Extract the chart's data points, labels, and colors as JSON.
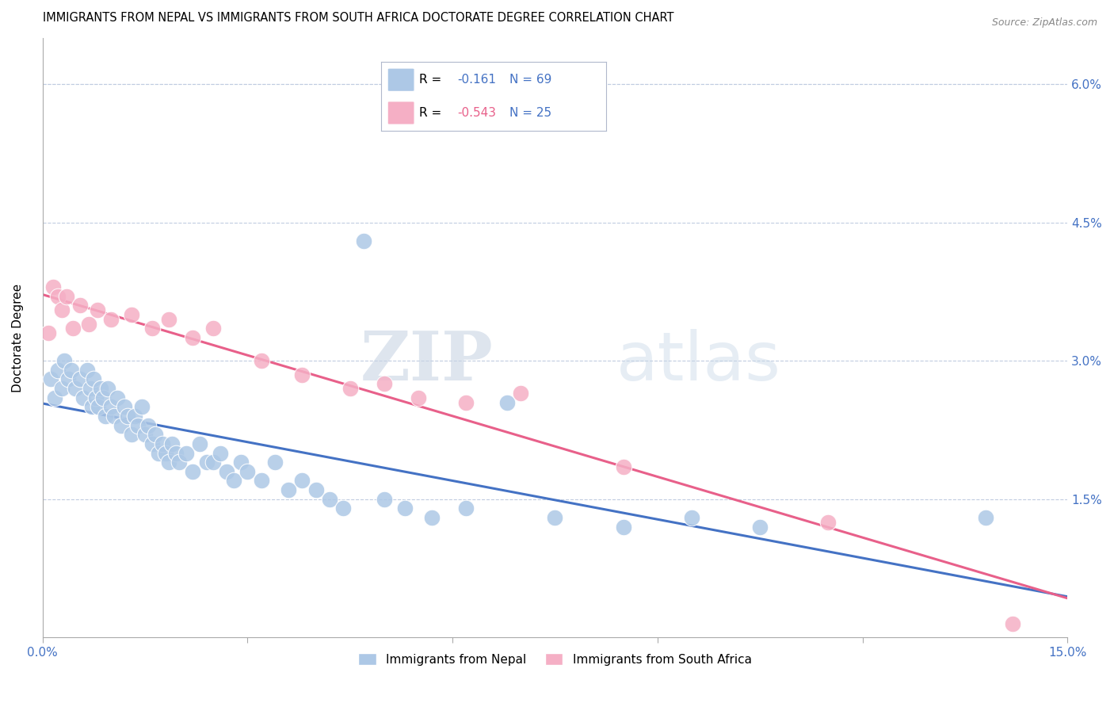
{
  "title": "IMMIGRANTS FROM NEPAL VS IMMIGRANTS FROM SOUTH AFRICA DOCTORATE DEGREE CORRELATION CHART",
  "source": "Source: ZipAtlas.com",
  "ylabel": "Doctorate Degree",
  "xmin": 0.0,
  "xmax": 15.0,
  "ymin": 0.0,
  "ymax": 6.5,
  "yplot_max": 6.0,
  "yticks": [
    1.5,
    3.0,
    4.5,
    6.0
  ],
  "nepal_R": -0.161,
  "nepal_N": 69,
  "sa_R": -0.543,
  "sa_N": 25,
  "nepal_color": "#adc8e6",
  "sa_color": "#f5afc5",
  "nepal_line_color": "#4472c4",
  "sa_line_color": "#e8608a",
  "watermark_zip": "ZIP",
  "watermark_atlas": "atlas",
  "nepal_x": [
    0.12,
    0.18,
    0.22,
    0.28,
    0.32,
    0.38,
    0.42,
    0.48,
    0.55,
    0.6,
    0.65,
    0.7,
    0.72,
    0.75,
    0.78,
    0.82,
    0.85,
    0.88,
    0.92,
    0.95,
    1.0,
    1.05,
    1.1,
    1.15,
    1.2,
    1.25,
    1.3,
    1.35,
    1.4,
    1.45,
    1.5,
    1.55,
    1.6,
    1.65,
    1.7,
    1.75,
    1.8,
    1.85,
    1.9,
    1.95,
    2.0,
    2.1,
    2.2,
    2.3,
    2.4,
    2.5,
    2.6,
    2.7,
    2.8,
    2.9,
    3.0,
    3.2,
    3.4,
    3.6,
    3.8,
    4.0,
    4.2,
    4.4,
    4.7,
    5.0,
    5.3,
    5.7,
    6.2,
    6.8,
    7.5,
    8.5,
    9.5,
    10.5,
    13.8
  ],
  "nepal_y": [
    2.8,
    2.6,
    2.9,
    2.7,
    3.0,
    2.8,
    2.9,
    2.7,
    2.8,
    2.6,
    2.9,
    2.7,
    2.5,
    2.8,
    2.6,
    2.5,
    2.7,
    2.6,
    2.4,
    2.7,
    2.5,
    2.4,
    2.6,
    2.3,
    2.5,
    2.4,
    2.2,
    2.4,
    2.3,
    2.5,
    2.2,
    2.3,
    2.1,
    2.2,
    2.0,
    2.1,
    2.0,
    1.9,
    2.1,
    2.0,
    1.9,
    2.0,
    1.8,
    2.1,
    1.9,
    1.9,
    2.0,
    1.8,
    1.7,
    1.9,
    1.8,
    1.7,
    1.9,
    1.6,
    1.7,
    1.6,
    1.5,
    1.4,
    4.3,
    1.5,
    1.4,
    1.3,
    1.4,
    2.55,
    1.3,
    1.2,
    1.3,
    1.2,
    1.3
  ],
  "sa_x": [
    0.08,
    0.15,
    0.22,
    0.28,
    0.35,
    0.45,
    0.55,
    0.68,
    0.8,
    1.0,
    1.3,
    1.6,
    1.85,
    2.2,
    2.5,
    3.2,
    3.8,
    4.5,
    5.0,
    5.5,
    6.2,
    7.0,
    8.5,
    11.5,
    14.2
  ],
  "sa_y": [
    3.3,
    3.8,
    3.7,
    3.55,
    3.7,
    3.35,
    3.6,
    3.4,
    3.55,
    3.45,
    3.5,
    3.35,
    3.45,
    3.25,
    3.35,
    3.0,
    2.85,
    2.7,
    2.75,
    2.6,
    2.55,
    2.65,
    1.85,
    1.25,
    0.15
  ],
  "title_fontsize": 10.5,
  "axis_label_fontsize": 11,
  "tick_fontsize": 11,
  "legend_fontsize": 11
}
